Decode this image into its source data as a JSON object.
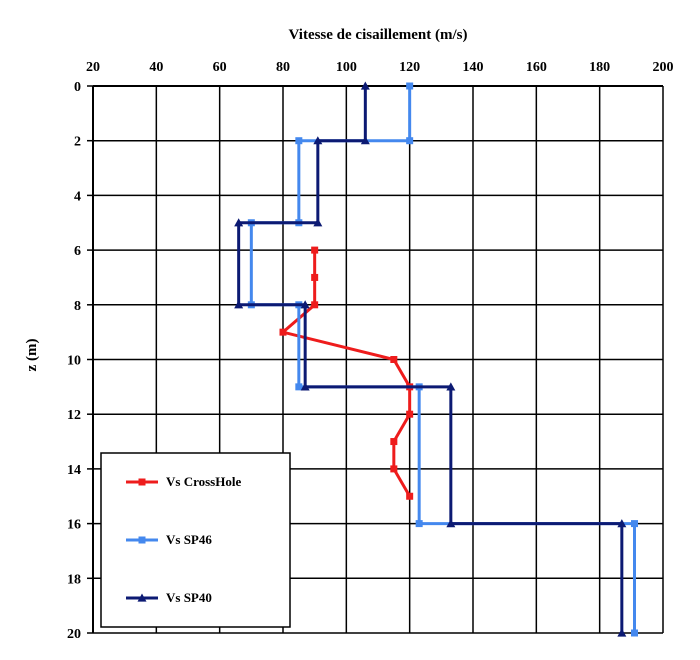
{
  "chart_data": {
    "type": "line",
    "title": "",
    "xlabel": "Vitesse de cisaillement (m/s)",
    "ylabel": "z (m)",
    "xlim": [
      20,
      200
    ],
    "ylim": [
      0,
      20
    ],
    "x_axis_position": "top",
    "y_axis_inverted": true,
    "x_ticks": [
      20,
      40,
      60,
      80,
      100,
      120,
      140,
      160,
      180,
      200
    ],
    "y_ticks": [
      0,
      2,
      4,
      6,
      8,
      10,
      12,
      14,
      16,
      18,
      20
    ],
    "grid": true,
    "legend_position": "bottom-left",
    "series": [
      {
        "name": "Vs CrossHole",
        "color": "#ee1c1c",
        "marker": "square",
        "points": [
          [
            90,
            6
          ],
          [
            90,
            7
          ],
          [
            90,
            8
          ],
          [
            80,
            9
          ],
          [
            115,
            10
          ],
          [
            120,
            11
          ],
          [
            120,
            12
          ],
          [
            115,
            13
          ],
          [
            115,
            14
          ],
          [
            120,
            15
          ]
        ]
      },
      {
        "name": "Vs SP46",
        "color": "#4488ee",
        "marker": "square",
        "points": [
          [
            120,
            0
          ],
          [
            120,
            2
          ],
          [
            85,
            2
          ],
          [
            85,
            5
          ],
          [
            70,
            5
          ],
          [
            70,
            8
          ],
          [
            85,
            8
          ],
          [
            85,
            11
          ],
          [
            123,
            11
          ],
          [
            123,
            16
          ],
          [
            191,
            16
          ],
          [
            191,
            20
          ]
        ]
      },
      {
        "name": "Vs SP40",
        "color": "#0c1a73",
        "marker": "triangle",
        "points": [
          [
            106,
            0
          ],
          [
            106,
            2
          ],
          [
            91,
            2
          ],
          [
            91,
            5
          ],
          [
            66,
            5
          ],
          [
            66,
            8
          ],
          [
            87,
            8
          ],
          [
            87,
            11
          ],
          [
            133,
            11
          ],
          [
            133,
            16
          ],
          [
            187,
            16
          ],
          [
            187,
            20
          ]
        ]
      }
    ]
  }
}
